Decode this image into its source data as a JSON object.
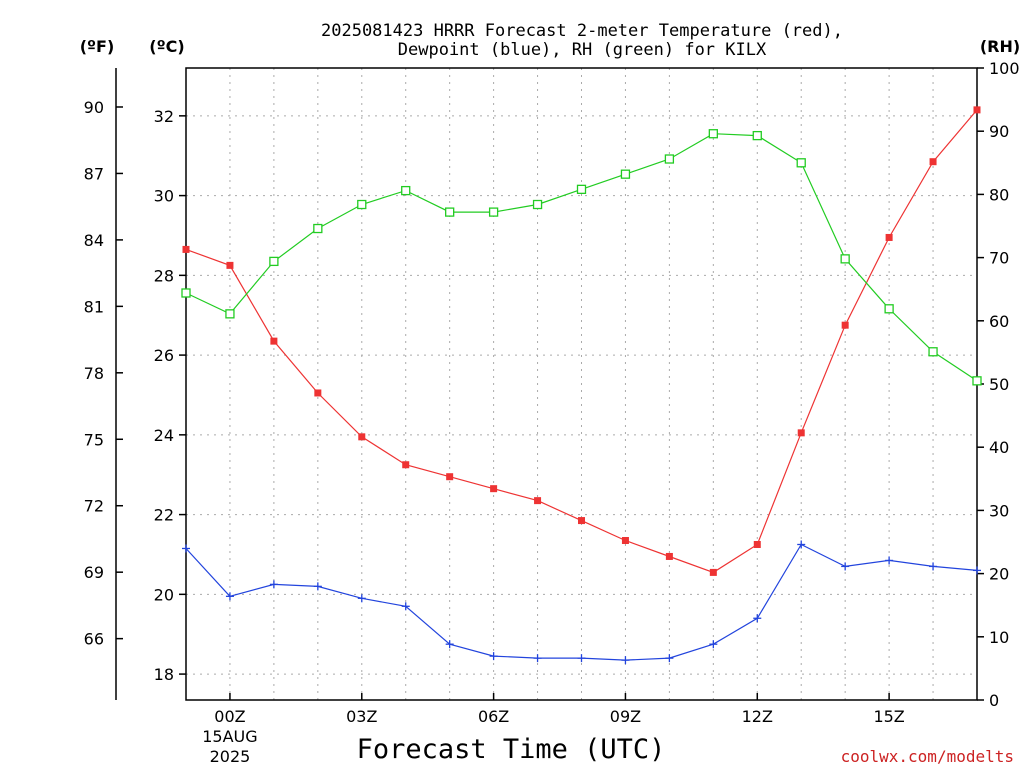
{
  "chart_data": {
    "type": "line",
    "title_lines": [
      "2025081423 HRRR Forecast 2-meter Temperature (red),",
      "Dewpoint (blue), RH (green) for KILX"
    ],
    "xlabel": "Forecast Time (UTC)",
    "credit": "coolwx.com/modelts",
    "units": {
      "fahrenheit": "(ºF)",
      "celsius": "(ºC)",
      "rh": "(RH)"
    },
    "x_hours": [
      -1,
      0,
      1,
      2,
      3,
      4,
      5,
      6,
      7,
      8,
      9,
      10,
      11,
      12,
      13,
      14,
      15,
      16,
      17
    ],
    "x_ticks": [
      {
        "hour": 0,
        "label": "00Z",
        "sublabels": [
          "15AUG",
          "2025"
        ]
      },
      {
        "hour": 3,
        "label": "03Z",
        "sublabels": []
      },
      {
        "hour": 6,
        "label": "06Z",
        "sublabels": []
      },
      {
        "hour": 9,
        "label": "09Z",
        "sublabels": []
      },
      {
        "hour": 12,
        "label": "12Z",
        "sublabels": []
      },
      {
        "hour": 15,
        "label": "15Z",
        "sublabels": []
      }
    ],
    "xlim": [
      -1,
      17
    ],
    "ylim_celsius": [
      17.35,
      33.2
    ],
    "ylim_rh": [
      0,
      100
    ],
    "celsius_ticks": [
      18,
      20,
      22,
      24,
      26,
      28,
      30,
      32
    ],
    "fahrenheit_ticks": [
      66,
      69,
      72,
      75,
      78,
      81,
      84,
      87,
      90
    ],
    "rh_ticks": [
      0,
      10,
      20,
      30,
      40,
      50,
      60,
      70,
      80,
      90,
      100
    ],
    "grid": true,
    "series": [
      {
        "name": "Temperature",
        "axis": "celsius",
        "color": "#ee3333",
        "marker": "filled-square",
        "values": [
          28.65,
          28.25,
          26.35,
          25.05,
          23.95,
          23.25,
          22.95,
          22.65,
          22.35,
          21.85,
          21.35,
          20.95,
          20.55,
          21.25,
          24.05,
          26.75,
          28.95,
          30.85,
          32.15
        ]
      },
      {
        "name": "Dewpoint",
        "axis": "celsius",
        "color": "#2244dd",
        "marker": "plus",
        "values": [
          21.15,
          19.95,
          20.25,
          20.2,
          19.9,
          19.7,
          18.75,
          18.45,
          18.4,
          18.4,
          18.35,
          18.4,
          18.75,
          19.4,
          21.25,
          20.7,
          20.85,
          20.7,
          20.6
        ]
      },
      {
        "name": "RH",
        "axis": "rh",
        "color": "#22cc22",
        "marker": "open-square",
        "values": [
          64.4,
          61.1,
          69.4,
          74.6,
          78.4,
          80.6,
          77.2,
          77.2,
          78.4,
          80.8,
          83.2,
          85.6,
          89.6,
          89.3,
          85.0,
          69.8,
          61.9,
          55.1,
          50.5
        ]
      }
    ]
  }
}
